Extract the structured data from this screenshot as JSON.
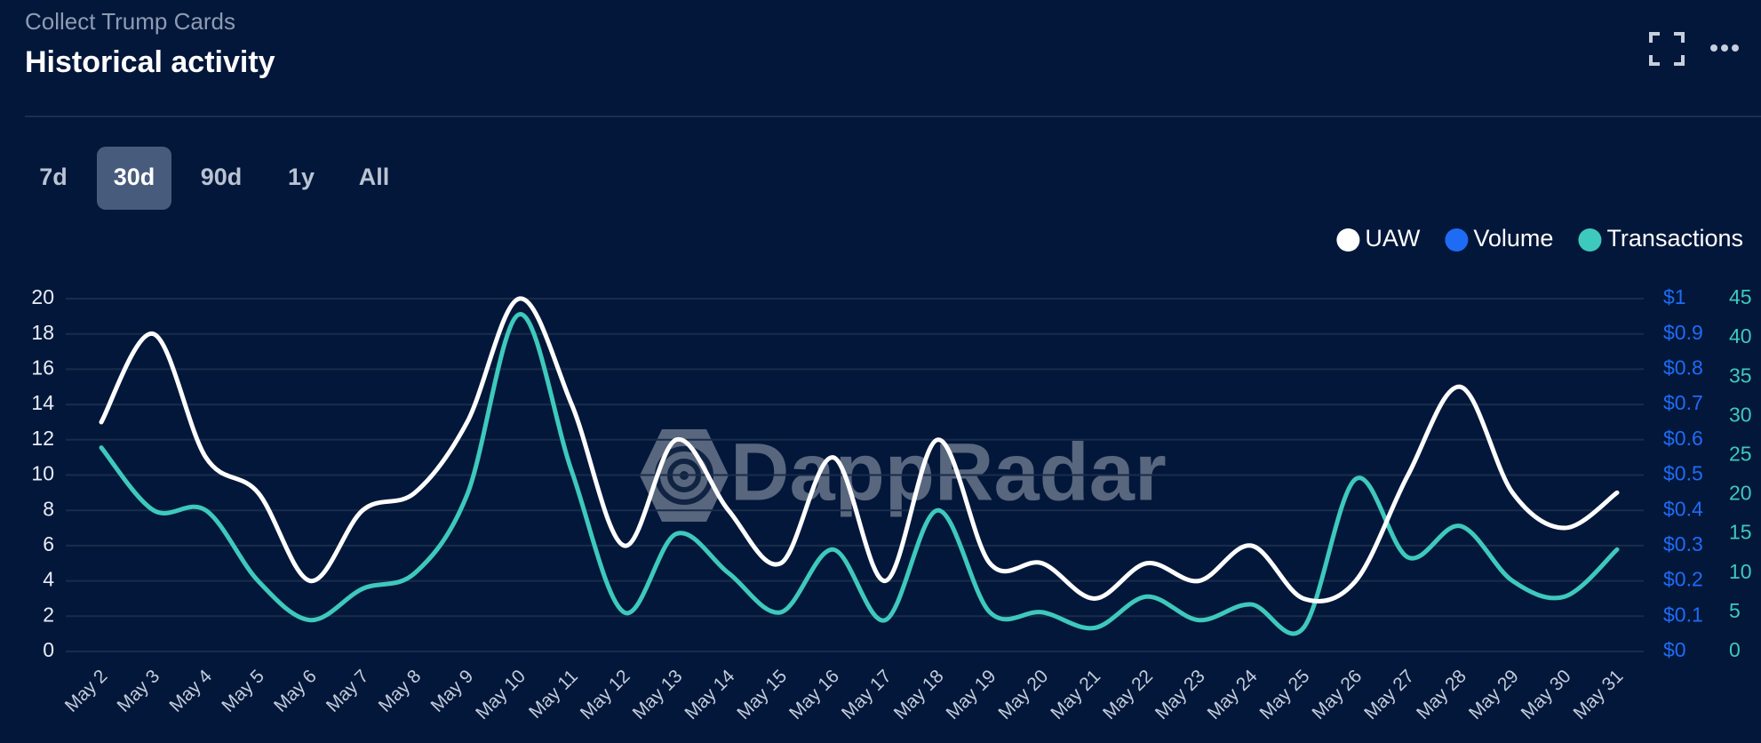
{
  "header": {
    "subtitle": "Collect Trump Cards",
    "title": "Historical activity"
  },
  "range_buttons": {
    "items": [
      "7d",
      "30d",
      "90d",
      "1y",
      "All"
    ],
    "active": "30d"
  },
  "watermark": "DappRadar",
  "chart_data": {
    "type": "line",
    "categories": [
      "May 2",
      "May 3",
      "May 4",
      "May 5",
      "May 6",
      "May 7",
      "May 8",
      "May 9",
      "May 10",
      "May 11",
      "May 12",
      "May 13",
      "May 14",
      "May 15",
      "May 16",
      "May 17",
      "May 18",
      "May 19",
      "May 20",
      "May 21",
      "May 22",
      "May 23",
      "May 24",
      "May 25",
      "May 26",
      "May 27",
      "May 28",
      "May 29",
      "May 30",
      "May 31"
    ],
    "series": [
      {
        "name": "UAW",
        "color": "#ffffff",
        "axis": "y",
        "values": [
          13,
          18,
          11,
          9,
          4,
          8,
          9,
          13,
          20,
          14,
          6,
          12,
          8,
          5,
          11,
          4,
          12,
          5,
          5,
          3,
          5,
          4,
          6,
          3,
          4,
          10,
          15,
          9,
          7,
          9
        ]
      },
      {
        "name": "Volume",
        "color": "#1e6cf5",
        "axis": "y2",
        "values": [
          null,
          null,
          null,
          null,
          null,
          null,
          null,
          null,
          null,
          null,
          null,
          null,
          null,
          null,
          null,
          null,
          null,
          null,
          null,
          null,
          null,
          null,
          null,
          null,
          null,
          null,
          null,
          null,
          null,
          null
        ]
      },
      {
        "name": "Transactions",
        "color": "#3ec9bd",
        "axis": "y3",
        "values": [
          26,
          18,
          18,
          9,
          4,
          8,
          10,
          20,
          43,
          23,
          5,
          15,
          10,
          5,
          13,
          4,
          18,
          5,
          5,
          3,
          7,
          4,
          6,
          3,
          22,
          12,
          16,
          9,
          7,
          13
        ]
      }
    ],
    "ylim": [
      0,
      20
    ],
    "yticks": [
      0,
      2,
      4,
      6,
      8,
      10,
      12,
      14,
      16,
      18,
      20
    ],
    "y2lim": [
      0,
      1
    ],
    "y2ticks": [
      {
        "value": 0,
        "label": "$0"
      },
      {
        "value": 0.1,
        "label": "$0.1"
      },
      {
        "value": 0.2,
        "label": "$0.2"
      },
      {
        "value": 0.3,
        "label": "$0.3"
      },
      {
        "value": 0.4,
        "label": "$0.4"
      },
      {
        "value": 0.5,
        "label": "$0.5"
      },
      {
        "value": 0.6,
        "label": "$0.6"
      },
      {
        "value": 0.7,
        "label": "$0.7"
      },
      {
        "value": 0.8,
        "label": "$0.8"
      },
      {
        "value": 0.9,
        "label": "$0.9"
      },
      {
        "value": 1,
        "label": "$1"
      }
    ],
    "y3lim": [
      0,
      45
    ],
    "y3ticks": [
      0,
      5,
      10,
      15,
      20,
      25,
      30,
      35,
      40,
      45
    ],
    "grid": true,
    "legend": "top-right"
  }
}
